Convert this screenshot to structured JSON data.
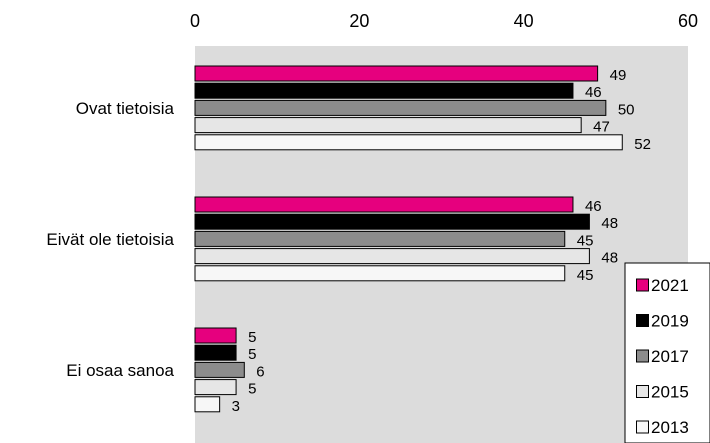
{
  "chart_data": {
    "type": "bar",
    "orientation": "horizontal",
    "x_axis_position": "top",
    "xlim": [
      0,
      60
    ],
    "x_ticks": [
      0,
      20,
      40,
      60
    ],
    "categories": [
      "Ovat tietoisia",
      "Eivät ole tietoisia",
      "Ei osaa sanoa"
    ],
    "series": [
      {
        "name": "2021",
        "values": [
          49,
          46,
          5
        ],
        "color": "#e6007e"
      },
      {
        "name": "2019",
        "values": [
          46,
          48,
          5
        ],
        "color": "#000000"
      },
      {
        "name": "2017",
        "values": [
          50,
          45,
          6
        ],
        "color": "#8c8c8c"
      },
      {
        "name": "2015",
        "values": [
          47,
          48,
          5
        ],
        "color": "#e6e6e6"
      },
      {
        "name": "2013",
        "values": [
          52,
          45,
          3
        ],
        "color": "#f7f7f7"
      }
    ],
    "plot_background": "#dcdcdc",
    "grid": false,
    "legend_position": "bottom-right"
  }
}
